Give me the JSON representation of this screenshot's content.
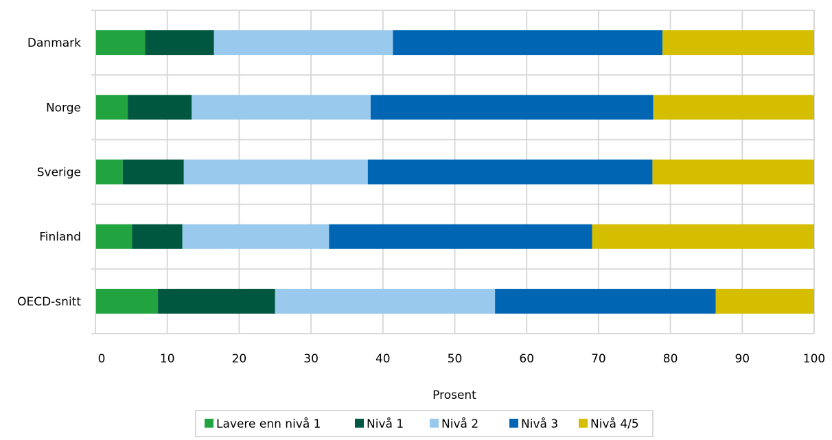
{
  "chart_data": {
    "type": "bar",
    "orientation": "horizontal",
    "stacked": true,
    "title": "",
    "xlabel": "Prosent",
    "ylabel": "",
    "xlim": [
      0,
      100
    ],
    "x_ticks": [
      0,
      10,
      20,
      30,
      40,
      50,
      60,
      70,
      80,
      90,
      100
    ],
    "grid": "vertical",
    "legend_position": "bottom",
    "categories": [
      "Danmark",
      "Norge",
      "Sverige",
      "Finland",
      "OECD-snitt"
    ],
    "series": [
      {
        "name": "Lavere enn nivå 1",
        "color": "#21a33f",
        "values": [
          6.9,
          4.5,
          3.8,
          5.1,
          8.7
        ]
      },
      {
        "name": "Nivå 1",
        "color": "#00573f",
        "values": [
          9.6,
          8.9,
          8.5,
          7.0,
          16.3
        ]
      },
      {
        "name": "Nivå 2",
        "color": "#99c9ec",
        "values": [
          24.9,
          24.9,
          25.6,
          20.4,
          30.6
        ]
      },
      {
        "name": "Nivå 3",
        "color": "#0066b3",
        "values": [
          37.5,
          39.3,
          39.6,
          36.6,
          30.7
        ]
      },
      {
        "name": "Nivå 4/5",
        "color": "#d5be00",
        "values": [
          21.1,
          22.4,
          22.5,
          30.9,
          13.7
        ]
      }
    ]
  }
}
